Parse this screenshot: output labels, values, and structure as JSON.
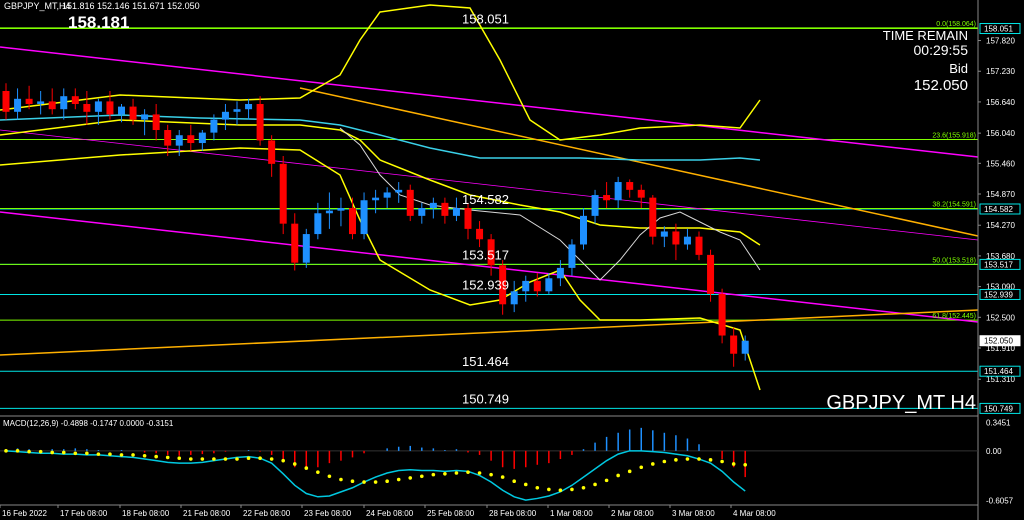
{
  "header": {
    "symbol_info": "GBPJPY_MT,H4",
    "ohlc": "151.816 152.146 151.671 152.050",
    "big_price": "158.181"
  },
  "countdown": {
    "label": "TIME REMAIN",
    "time": "00:29:55",
    "bid_label": "Bid",
    "bid_value": "152.050"
  },
  "watermark": "GBPJPY_MT  H4",
  "macd_label": "MACD(12,26,9) -0.4898 -0.1747 0.0000 -0.3151",
  "colors": {
    "bull": "#1e90ff",
    "bear": "#ff0000",
    "level_line": "#00e5e5",
    "level_line_green": "#7fff00",
    "bands": "#ffff00",
    "trend_magenta": "#ff00ff",
    "trend_orange": "#ffb000",
    "ma_cyan": "#3ad0e8",
    "ma_white": "#d8d8d8",
    "macd_hist_pos": "#1e90ff",
    "macd_hist_neg": "#ff0000",
    "macd_signal": "#ffff00",
    "macd_line": "#00c8e0",
    "axis_text": "#ffffff"
  },
  "chart_data": [
    {
      "type": "candlestick",
      "title": "GBPJPY_MT,H4",
      "x_tick_labels": [
        "16 Feb 2022",
        "17 Feb 08:00",
        "18 Feb 08:00",
        "21 Feb 08:00",
        "22 Feb 08:00",
        "23 Feb 08:00",
        "24 Feb 08:00",
        "25 Feb 08:00",
        "28 Feb 08:00",
        "1 Mar 08:00",
        "2 Mar 08:00",
        "3 Mar 08:00",
        "4 Mar 08:00"
      ],
      "y_tick_labels": [
        "157.820",
        "157.230",
        "156.640",
        "156.040",
        "155.460",
        "154.870",
        "154.270",
        "153.680",
        "153.090",
        "152.500",
        "151.910",
        "151.310"
      ],
      "ylim": [
        150.68,
        158.33
      ],
      "candles": [
        {
          "o": 156.85,
          "h": 157.0,
          "l": 156.3,
          "c": 156.45
        },
        {
          "o": 156.45,
          "h": 156.9,
          "l": 156.3,
          "c": 156.7
        },
        {
          "o": 156.7,
          "h": 156.95,
          "l": 156.5,
          "c": 156.6
        },
        {
          "o": 156.6,
          "h": 156.85,
          "l": 156.4,
          "c": 156.65
        },
        {
          "o": 156.65,
          "h": 156.9,
          "l": 156.4,
          "c": 156.5
        },
        {
          "o": 156.5,
          "h": 156.9,
          "l": 156.3,
          "c": 156.75
        },
        {
          "o": 156.75,
          "h": 156.9,
          "l": 156.5,
          "c": 156.6
        },
        {
          "o": 156.6,
          "h": 156.85,
          "l": 156.2,
          "c": 156.45
        },
        {
          "o": 156.45,
          "h": 156.7,
          "l": 156.2,
          "c": 156.65
        },
        {
          "o": 156.65,
          "h": 156.85,
          "l": 156.3,
          "c": 156.4
        },
        {
          "o": 156.4,
          "h": 156.6,
          "l": 156.25,
          "c": 156.55
        },
        {
          "o": 156.55,
          "h": 156.7,
          "l": 156.2,
          "c": 156.3
        },
        {
          "o": 156.3,
          "h": 156.5,
          "l": 156.0,
          "c": 156.4
        },
        {
          "o": 156.4,
          "h": 156.6,
          "l": 155.9,
          "c": 156.1
        },
        {
          "o": 156.1,
          "h": 156.2,
          "l": 155.6,
          "c": 155.8
        },
        {
          "o": 155.8,
          "h": 156.1,
          "l": 155.6,
          "c": 156.0
        },
        {
          "o": 156.0,
          "h": 156.2,
          "l": 155.7,
          "c": 155.85
        },
        {
          "o": 155.85,
          "h": 156.1,
          "l": 155.7,
          "c": 156.05
        },
        {
          "o": 156.05,
          "h": 156.4,
          "l": 155.9,
          "c": 156.3
        },
        {
          "o": 156.3,
          "h": 156.6,
          "l": 156.1,
          "c": 156.45
        },
        {
          "o": 156.45,
          "h": 156.65,
          "l": 156.2,
          "c": 156.5
        },
        {
          "o": 156.5,
          "h": 156.7,
          "l": 156.3,
          "c": 156.6
        },
        {
          "o": 156.6,
          "h": 156.75,
          "l": 155.8,
          "c": 155.9
        },
        {
          "o": 155.9,
          "h": 156.0,
          "l": 155.2,
          "c": 155.45
        },
        {
          "o": 155.45,
          "h": 155.6,
          "l": 154.1,
          "c": 154.3
        },
        {
          "o": 154.3,
          "h": 154.5,
          "l": 153.4,
          "c": 153.55
        },
        {
          "o": 153.55,
          "h": 154.2,
          "l": 153.45,
          "c": 154.1
        },
        {
          "o": 154.1,
          "h": 154.7,
          "l": 154.0,
          "c": 154.5
        },
        {
          "o": 154.5,
          "h": 154.9,
          "l": 154.2,
          "c": 154.55
        },
        {
          "o": 154.55,
          "h": 154.8,
          "l": 154.25,
          "c": 154.6
        },
        {
          "o": 154.6,
          "h": 154.8,
          "l": 154.0,
          "c": 154.1
        },
        {
          "o": 154.1,
          "h": 154.9,
          "l": 154.0,
          "c": 154.75
        },
        {
          "o": 154.75,
          "h": 154.95,
          "l": 154.5,
          "c": 154.8
        },
        {
          "o": 154.8,
          "h": 155.0,
          "l": 154.6,
          "c": 154.9
        },
        {
          "o": 154.9,
          "h": 155.1,
          "l": 154.7,
          "c": 154.95
        },
        {
          "o": 154.95,
          "h": 155.05,
          "l": 154.35,
          "c": 154.45
        },
        {
          "o": 154.45,
          "h": 154.7,
          "l": 154.3,
          "c": 154.6
        },
        {
          "o": 154.6,
          "h": 154.8,
          "l": 154.4,
          "c": 154.7
        },
        {
          "o": 154.7,
          "h": 154.8,
          "l": 154.3,
          "c": 154.45
        },
        {
          "o": 154.45,
          "h": 154.8,
          "l": 154.35,
          "c": 154.6
        },
        {
          "o": 154.6,
          "h": 154.7,
          "l": 154.0,
          "c": 154.2
        },
        {
          "o": 154.2,
          "h": 154.35,
          "l": 153.85,
          "c": 154.0
        },
        {
          "o": 154.0,
          "h": 154.1,
          "l": 153.3,
          "c": 153.5
        },
        {
          "o": 153.5,
          "h": 153.6,
          "l": 152.55,
          "c": 152.75
        },
        {
          "o": 152.75,
          "h": 153.2,
          "l": 152.6,
          "c": 153.0
        },
        {
          "o": 153.0,
          "h": 153.3,
          "l": 152.8,
          "c": 153.2
        },
        {
          "o": 153.2,
          "h": 153.35,
          "l": 152.9,
          "c": 153.0
        },
        {
          "o": 153.0,
          "h": 153.35,
          "l": 152.95,
          "c": 153.25
        },
        {
          "o": 153.25,
          "h": 153.6,
          "l": 153.1,
          "c": 153.45
        },
        {
          "o": 153.45,
          "h": 154.0,
          "l": 153.3,
          "c": 153.9
        },
        {
          "o": 153.9,
          "h": 154.6,
          "l": 153.8,
          "c": 154.45
        },
        {
          "o": 154.45,
          "h": 154.95,
          "l": 154.3,
          "c": 154.85
        },
        {
          "o": 154.85,
          "h": 155.1,
          "l": 154.6,
          "c": 154.75
        },
        {
          "o": 154.75,
          "h": 155.2,
          "l": 154.6,
          "c": 155.1
        },
        {
          "o": 155.1,
          "h": 155.15,
          "l": 154.8,
          "c": 154.95
        },
        {
          "o": 154.95,
          "h": 155.05,
          "l": 154.6,
          "c": 154.8
        },
        {
          "o": 154.8,
          "h": 154.85,
          "l": 153.9,
          "c": 154.05
        },
        {
          "o": 154.05,
          "h": 154.25,
          "l": 153.85,
          "c": 154.15
        },
        {
          "o": 154.15,
          "h": 154.3,
          "l": 153.6,
          "c": 153.9
        },
        {
          "o": 153.9,
          "h": 154.2,
          "l": 153.8,
          "c": 154.05
        },
        {
          "o": 154.05,
          "h": 154.15,
          "l": 153.6,
          "c": 153.7
        },
        {
          "o": 153.7,
          "h": 153.8,
          "l": 152.8,
          "c": 152.95
        },
        {
          "o": 152.95,
          "h": 153.05,
          "l": 152.0,
          "c": 152.15
        },
        {
          "o": 152.15,
          "h": 152.3,
          "l": 151.55,
          "c": 151.8
        },
        {
          "o": 151.8,
          "h": 152.15,
          "l": 151.67,
          "c": 152.05
        }
      ],
      "horizontal_levels": [
        {
          "price": 158.051,
          "label": "158.051",
          "color": "green"
        },
        {
          "price": 155.918,
          "label": "23.6(155.918)",
          "color": "green"
        },
        {
          "price": 154.582,
          "label": "154.582",
          "color": "cyan"
        },
        {
          "price": 154.591,
          "label": "38.2(154.591)",
          "color": "green"
        },
        {
          "price": 153.517,
          "label": "153.517",
          "color": "cyan"
        },
        {
          "price": 153.518,
          "label": "50.0(153.518)",
          "color": "green"
        },
        {
          "price": 152.939,
          "label": "152.939",
          "color": "cyan"
        },
        {
          "price": 152.445,
          "label": "61.8(152.445)",
          "color": "green"
        },
        {
          "price": 151.464,
          "label": "151.464",
          "color": "cyan"
        },
        {
          "price": 150.749,
          "label": "150.749",
          "color": "cyan"
        },
        {
          "price": 158.064,
          "label": "0.0(158.064)",
          "color": "green"
        }
      ],
      "right_axis_tags": [
        "158.051",
        "154.582",
        "153.517",
        "152.939",
        "152.050",
        "151.464",
        "150.749"
      ],
      "current_price": 152.05
    },
    {
      "type": "bar",
      "title": "MACD(12,26,9) -0.4898 -0.1747 0.0000 -0.3151",
      "y_tick_labels": [
        "0.3451",
        "0.00",
        "-0.6057"
      ],
      "ylim": [
        -0.66,
        0.4
      ],
      "histogram": [
        0.02,
        0.03,
        0.02,
        0.01,
        0.02,
        0.02,
        0.03,
        0.02,
        0.01,
        0.0,
        0.01,
        0.0,
        -0.02,
        -0.03,
        -0.05,
        -0.06,
        -0.05,
        -0.04,
        -0.03,
        -0.01,
        0.0,
        0.01,
        -0.01,
        -0.05,
        -0.12,
        -0.2,
        -0.22,
        -0.2,
        -0.15,
        -0.12,
        -0.08,
        -0.03,
        0.0,
        0.03,
        0.05,
        0.06,
        0.04,
        0.03,
        0.01,
        0.02,
        -0.02,
        -0.05,
        -0.12,
        -0.2,
        -0.22,
        -0.2,
        -0.17,
        -0.15,
        -0.1,
        -0.05,
        0.02,
        0.1,
        0.17,
        0.22,
        0.26,
        0.28,
        0.25,
        0.22,
        0.19,
        0.15,
        0.08,
        0.0,
        -0.1,
        -0.2,
        -0.32
      ],
      "macd_line": [
        0.0,
        -0.01,
        -0.02,
        -0.03,
        -0.03,
        -0.04,
        -0.04,
        -0.05,
        -0.05,
        -0.06,
        -0.07,
        -0.08,
        -0.1,
        -0.12,
        -0.14,
        -0.15,
        -0.15,
        -0.14,
        -0.12,
        -0.1,
        -0.08,
        -0.07,
        -0.09,
        -0.15,
        -0.28,
        -0.42,
        -0.52,
        -0.56,
        -0.55,
        -0.5,
        -0.45,
        -0.38,
        -0.32,
        -0.27,
        -0.24,
        -0.23,
        -0.24,
        -0.24,
        -0.25,
        -0.24,
        -0.25,
        -0.3,
        -0.38,
        -0.48,
        -0.56,
        -0.6,
        -0.58,
        -0.55,
        -0.5,
        -0.42,
        -0.32,
        -0.22,
        -0.12,
        -0.04,
        0.0,
        0.0,
        -0.01,
        -0.02,
        -0.04,
        -0.06,
        -0.1,
        -0.15,
        -0.25,
        -0.38,
        -0.49
      ],
      "signal_line": [
        0.0,
        0.0,
        -0.01,
        -0.01,
        -0.02,
        -0.02,
        -0.03,
        -0.03,
        -0.04,
        -0.04,
        -0.05,
        -0.05,
        -0.06,
        -0.07,
        -0.08,
        -0.09,
        -0.1,
        -0.1,
        -0.1,
        -0.1,
        -0.1,
        -0.09,
        -0.09,
        -0.1,
        -0.12,
        -0.16,
        -0.21,
        -0.26,
        -0.31,
        -0.35,
        -0.37,
        -0.38,
        -0.38,
        -0.37,
        -0.35,
        -0.33,
        -0.31,
        -0.29,
        -0.28,
        -0.27,
        -0.26,
        -0.27,
        -0.29,
        -0.32,
        -0.37,
        -0.41,
        -0.45,
        -0.47,
        -0.48,
        -0.47,
        -0.45,
        -0.41,
        -0.36,
        -0.3,
        -0.25,
        -0.2,
        -0.16,
        -0.13,
        -0.11,
        -0.1,
        -0.1,
        -0.11,
        -0.13,
        -0.16,
        -0.17
      ]
    }
  ]
}
